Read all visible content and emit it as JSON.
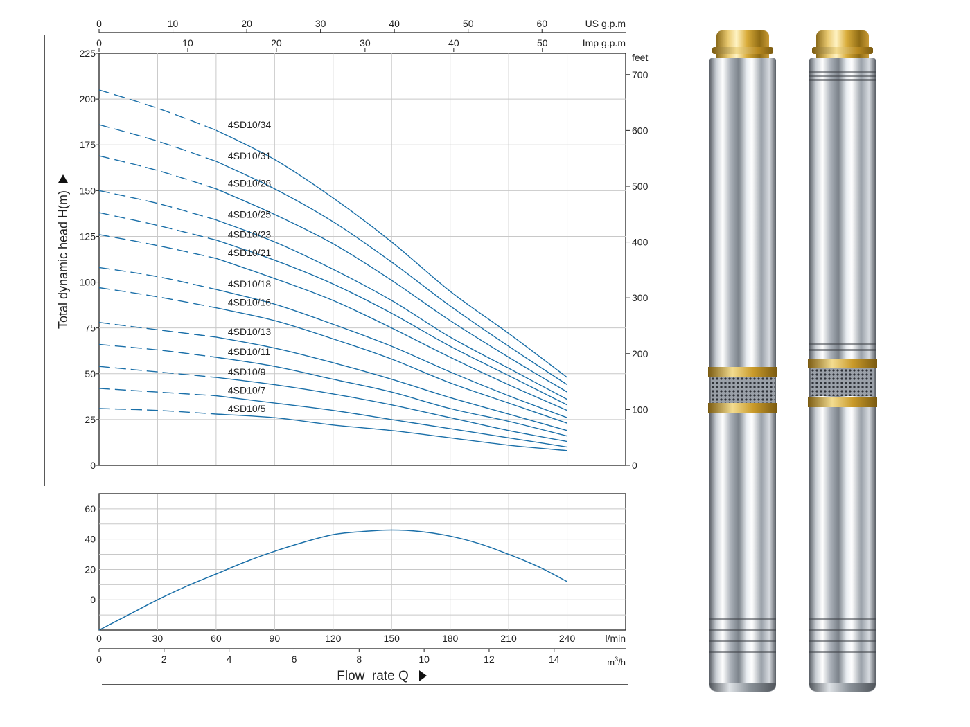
{
  "chart_data": [
    {
      "type": "line",
      "title": "",
      "xlabel": "Flow  rate Q",
      "ylabel": "Total dynamic head H(m)",
      "x_unit": "l/min",
      "xlim": [
        0,
        270
      ],
      "ylim": [
        0,
        225
      ],
      "yticks": [
        0,
        25,
        50,
        75,
        100,
        125,
        150,
        175,
        200,
        225
      ],
      "right_axis": {
        "unit": "feet",
        "ticks": [
          0,
          100,
          200,
          300,
          400,
          500,
          600,
          700
        ]
      },
      "top_axis_us": {
        "unit": "US g.p.m",
        "ticks": [
          0,
          10,
          20,
          30,
          40,
          50,
          60
        ]
      },
      "top_axis_imp": {
        "unit": "Imp g.p.m",
        "ticks": [
          0,
          10,
          20,
          30,
          40,
          50
        ]
      },
      "grid": true,
      "dashed_until_x": 60,
      "curve_x": [
        0,
        30,
        60,
        90,
        120,
        150,
        180,
        210,
        240
      ],
      "series": [
        {
          "name": "4SD10/34",
          "values": [
            205,
            195,
            183,
            167,
            146,
            122,
            95,
            72,
            48
          ]
        },
        {
          "name": "4SD10/31",
          "values": [
            186,
            177,
            166,
            151,
            133,
            111,
            87,
            65,
            44
          ]
        },
        {
          "name": "4SD10/28",
          "values": [
            169,
            161,
            151,
            137,
            121,
            101,
            79,
            59,
            40
          ]
        },
        {
          "name": "4SD10/25",
          "values": [
            150,
            143,
            134,
            122,
            107,
            90,
            70,
            53,
            36
          ]
        },
        {
          "name": "4SD10/23",
          "values": [
            138,
            131,
            123,
            112,
            99,
            83,
            65,
            49,
            33
          ]
        },
        {
          "name": "4SD10/21",
          "values": [
            126,
            120,
            113,
            102,
            90,
            75,
            59,
            44,
            30
          ]
        },
        {
          "name": "4SD10/18",
          "values": [
            108,
            103,
            96,
            88,
            77,
            65,
            51,
            38,
            26
          ]
        },
        {
          "name": "4SD10/16",
          "values": [
            97,
            92,
            86,
            79,
            69,
            58,
            45,
            34,
            23
          ]
        },
        {
          "name": "4SD10/13",
          "values": [
            78,
            74,
            70,
            64,
            56,
            47,
            37,
            28,
            19
          ]
        },
        {
          "name": "4SD10/11",
          "values": [
            66,
            63,
            59,
            54,
            47,
            40,
            31,
            24,
            16
          ]
        },
        {
          "name": "4SD10/9",
          "values": [
            54,
            51,
            48,
            44,
            39,
            33,
            26,
            19,
            13
          ]
        },
        {
          "name": "4SD10/7",
          "values": [
            42,
            40,
            38,
            34,
            30,
            25,
            20,
            15,
            10
          ]
        },
        {
          "name": "4SD10/5",
          "values": [
            31,
            30,
            28,
            26,
            22,
            19,
            15,
            11,
            8
          ]
        }
      ]
    },
    {
      "type": "line",
      "title": "",
      "xlabel": "Flow  rate Q",
      "ylabel": "",
      "x_unit": "l/min",
      "x_unit_alt": "m3/h",
      "xlim": [
        0,
        270
      ],
      "ylim": [
        -20,
        70
      ],
      "yticks": [
        0,
        20,
        40,
        60
      ],
      "xticks": [
        0,
        30,
        60,
        90,
        120,
        150,
        180,
        210,
        240
      ],
      "alt_xticks": [
        0,
        2,
        4,
        6,
        8,
        10,
        12,
        14
      ],
      "grid": true,
      "series": [
        {
          "x": [
            0,
            15,
            30,
            45,
            60,
            75,
            90,
            105,
            120,
            135,
            150,
            165,
            180,
            195,
            210,
            225,
            240
          ],
          "values": [
            -20,
            -10,
            0,
            9,
            17,
            25,
            32,
            38,
            43,
            45,
            46,
            45,
            42,
            37,
            30,
            22,
            12
          ]
        }
      ]
    }
  ]
}
